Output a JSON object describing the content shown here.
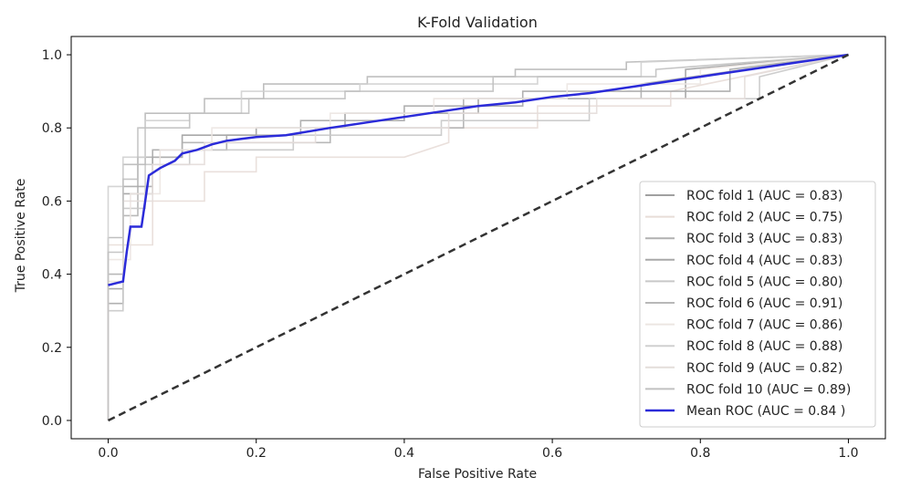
{
  "chart_data": {
    "type": "line",
    "title": "K-Fold Validation",
    "xlabel": "False Positive Rate",
    "ylabel": "True Positive Rate",
    "xlim": [
      -0.05,
      1.05
    ],
    "ylim": [
      -0.05,
      1.05
    ],
    "xticks": [
      0.0,
      0.2,
      0.4,
      0.6,
      0.8,
      1.0
    ],
    "yticks": [
      0.0,
      0.2,
      0.4,
      0.6,
      0.8,
      1.0
    ],
    "xtick_labels": [
      "0.0",
      "0.2",
      "0.4",
      "0.6",
      "0.8",
      "1.0"
    ],
    "ytick_labels": [
      "0.0",
      "0.2",
      "0.4",
      "0.6",
      "0.8",
      "1.0"
    ],
    "grid": false,
    "legend_position": "lower-right",
    "series": [
      {
        "name": "ROC fold 1 (AUC = 0.83)",
        "color": "#a0a0a0",
        "x": [
          0,
          0,
          0.02,
          0.02,
          0.06,
          0.06,
          0.1,
          0.1,
          0.2,
          0.2,
          0.32,
          0.32,
          0.5,
          0.5,
          0.78,
          0.78,
          1.0
        ],
        "y": [
          0,
          0.36,
          0.36,
          0.62,
          0.62,
          0.72,
          0.72,
          0.78,
          0.78,
          0.8,
          0.8,
          0.84,
          0.84,
          0.88,
          0.88,
          0.96,
          1.0
        ]
      },
      {
        "name": "ROC fold 2 (AUC = 0.75)",
        "color": "#e8ddd8",
        "x": [
          0,
          0,
          0.06,
          0.06,
          0.13,
          0.13,
          0.2,
          0.2,
          0.4,
          0.46,
          0.46,
          0.58,
          0.58,
          0.76,
          0.76,
          1.0
        ],
        "y": [
          0,
          0.48,
          0.48,
          0.6,
          0.6,
          0.68,
          0.68,
          0.72,
          0.72,
          0.76,
          0.8,
          0.8,
          0.86,
          0.86,
          0.9,
          1.0
        ]
      },
      {
        "name": "ROC fold 3 (AUC = 0.83)",
        "color": "#b0b0b0",
        "x": [
          0,
          0,
          0.02,
          0.02,
          0.04,
          0.04,
          0.1,
          0.1,
          0.3,
          0.3,
          0.48,
          0.48,
          0.72,
          0.72,
          1.0
        ],
        "y": [
          0,
          0.4,
          0.4,
          0.56,
          0.56,
          0.72,
          0.72,
          0.76,
          0.76,
          0.8,
          0.8,
          0.88,
          0.88,
          0.92,
          1.0
        ]
      },
      {
        "name": "ROC fold 4 (AUC = 0.83)",
        "color": "#a8a8a8",
        "x": [
          0,
          0,
          0.02,
          0.02,
          0.06,
          0.06,
          0.16,
          0.16,
          0.26,
          0.26,
          0.4,
          0.4,
          0.56,
          0.56,
          0.84,
          0.84,
          1.0
        ],
        "y": [
          0,
          0.32,
          0.32,
          0.64,
          0.64,
          0.74,
          0.74,
          0.78,
          0.78,
          0.82,
          0.82,
          0.86,
          0.86,
          0.9,
          0.9,
          0.96,
          1.0
        ]
      },
      {
        "name": "ROC fold 5 (AUC = 0.80)",
        "color": "#c8c8c8",
        "x": [
          0,
          0,
          0.02,
          0.02,
          0.05,
          0.05,
          0.11,
          0.11,
          0.25,
          0.25,
          0.45,
          0.45,
          0.65,
          0.65,
          0.88,
          0.88,
          1.0
        ],
        "y": [
          0,
          0.3,
          0.3,
          0.58,
          0.58,
          0.7,
          0.7,
          0.74,
          0.74,
          0.78,
          0.78,
          0.82,
          0.82,
          0.88,
          0.88,
          0.94,
          1.0
        ]
      },
      {
        "name": "ROC fold 6 (AUC = 0.91)",
        "color": "#b8b8b8",
        "x": [
          0,
          0,
          0.02,
          0.02,
          0.05,
          0.05,
          0.13,
          0.13,
          0.21,
          0.21,
          0.35,
          0.35,
          0.55,
          0.55,
          0.7,
          0.7,
          1.0
        ],
        "y": [
          0,
          0.5,
          0.5,
          0.7,
          0.7,
          0.84,
          0.84,
          0.88,
          0.88,
          0.92,
          0.92,
          0.94,
          0.94,
          0.96,
          0.96,
          0.98,
          1.0
        ]
      },
      {
        "name": "ROC fold 7 (AUC = 0.86)",
        "color": "#ece6e2",
        "x": [
          0,
          0,
          0.03,
          0.03,
          0.07,
          0.07,
          0.14,
          0.14,
          0.3,
          0.3,
          0.44,
          0.44,
          0.62,
          0.62,
          0.8,
          0.8,
          1.0
        ],
        "y": [
          0,
          0.44,
          0.44,
          0.62,
          0.62,
          0.74,
          0.74,
          0.8,
          0.8,
          0.84,
          0.84,
          0.88,
          0.88,
          0.92,
          0.92,
          0.96,
          1.0
        ]
      },
      {
        "name": "ROC fold 8 (AUC = 0.88)",
        "color": "#d0d0d0",
        "x": [
          0,
          0,
          0.02,
          0.02,
          0.05,
          0.05,
          0.11,
          0.11,
          0.18,
          0.18,
          0.34,
          0.34,
          0.58,
          0.58,
          0.72,
          0.72,
          1.0
        ],
        "y": [
          0,
          0.64,
          0.64,
          0.72,
          0.72,
          0.82,
          0.82,
          0.84,
          0.84,
          0.9,
          0.9,
          0.92,
          0.92,
          0.94,
          0.94,
          0.98,
          1.0
        ]
      },
      {
        "name": "ROC fold 9 (AUC = 0.82)",
        "color": "#e4ddda",
        "x": [
          0,
          0,
          0.02,
          0.02,
          0.06,
          0.06,
          0.13,
          0.13,
          0.28,
          0.28,
          0.46,
          0.46,
          0.66,
          0.66,
          0.86,
          0.86,
          1.0
        ],
        "y": [
          0,
          0.38,
          0.38,
          0.6,
          0.6,
          0.7,
          0.7,
          0.76,
          0.76,
          0.8,
          0.8,
          0.84,
          0.84,
          0.88,
          0.88,
          0.94,
          1.0
        ]
      },
      {
        "name": "ROC fold 10 (AUC = 0.89)",
        "color": "#c0c0c0",
        "x": [
          0,
          0,
          0.02,
          0.02,
          0.04,
          0.04,
          0.11,
          0.11,
          0.19,
          0.19,
          0.32,
          0.32,
          0.52,
          0.52,
          0.74,
          0.74,
          1.0
        ],
        "y": [
          0,
          0.46,
          0.46,
          0.66,
          0.66,
          0.8,
          0.8,
          0.84,
          0.84,
          0.88,
          0.88,
          0.9,
          0.9,
          0.94,
          0.94,
          0.96,
          1.0
        ]
      },
      {
        "name": "Mean ROC (AUC = 0.84 )",
        "color": "#2b2bd9",
        "x": [
          0,
          0.02,
          0.025,
          0.03,
          0.045,
          0.05,
          0.055,
          0.07,
          0.08,
          0.09,
          0.1,
          0.12,
          0.14,
          0.16,
          0.18,
          0.2,
          0.24,
          0.3,
          0.35,
          0.4,
          0.45,
          0.5,
          0.55,
          0.6,
          0.65,
          0.7,
          0.75,
          0.8,
          0.85,
          0.9,
          0.95,
          1.0
        ],
        "y": [
          0.37,
          0.38,
          0.46,
          0.53,
          0.53,
          0.6,
          0.67,
          0.69,
          0.7,
          0.71,
          0.73,
          0.74,
          0.755,
          0.765,
          0.77,
          0.775,
          0.78,
          0.8,
          0.815,
          0.83,
          0.845,
          0.86,
          0.87,
          0.885,
          0.895,
          0.91,
          0.925,
          0.94,
          0.955,
          0.97,
          0.985,
          1.0
        ]
      }
    ],
    "chance_line": {
      "x": [
        0,
        1
      ],
      "y": [
        0,
        1
      ],
      "color": "#333333"
    }
  }
}
